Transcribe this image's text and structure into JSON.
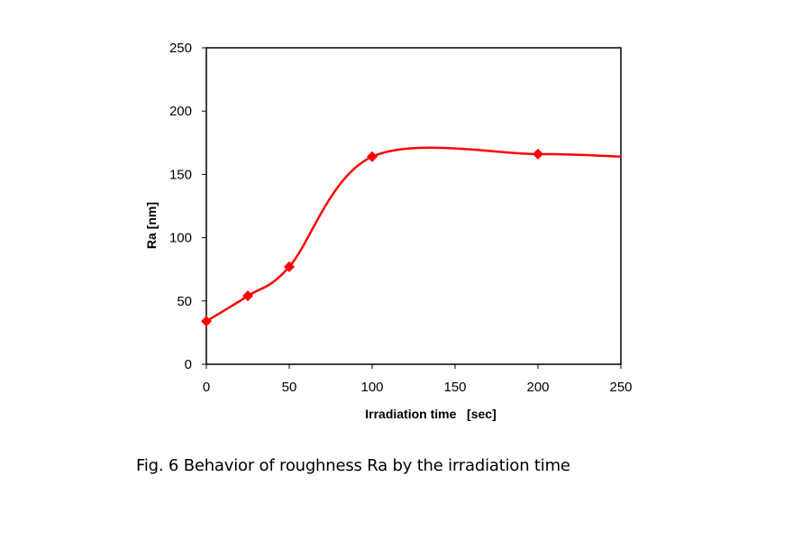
{
  "chart_data": {
    "type": "line",
    "title": "",
    "xlabel": "Irradiation time   [sec]",
    "ylabel": "Ra [nm]",
    "xlim": [
      0,
      250
    ],
    "ylim": [
      0,
      250
    ],
    "xticks": [
      0,
      50,
      100,
      150,
      200,
      250
    ],
    "yticks": [
      0,
      50,
      100,
      150,
      200,
      250
    ],
    "grid": false,
    "smooth": true,
    "series": [
      {
        "name": "Ra",
        "color": "#ff0000",
        "x": [
          0,
          25,
          50,
          100,
          200,
          250
        ],
        "y": [
          34,
          54,
          77,
          164,
          166,
          164
        ],
        "markers": [
          true,
          true,
          true,
          true,
          true,
          false
        ]
      }
    ]
  },
  "caption": "Fig. 6 Behavior of roughness Ra by the irradiation time"
}
